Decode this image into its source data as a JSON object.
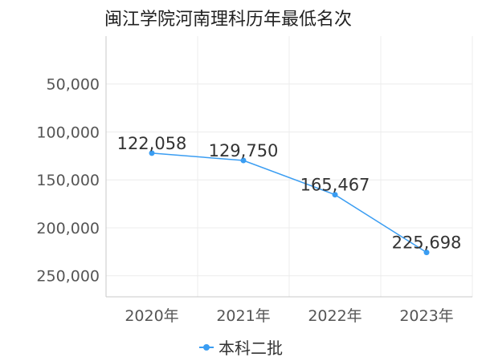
{
  "chart_data": {
    "type": "line",
    "title": "闽江学院河南理科历年最低名次",
    "categories": [
      "2020年",
      "2021年",
      "2022年",
      "2023年"
    ],
    "series": [
      {
        "name": "本科二批",
        "values": [
          122058,
          129750,
          165467,
          225698
        ],
        "color": "#3a9df2"
      }
    ],
    "data_labels": [
      "122,058",
      "129,750",
      "165,467",
      "225,698"
    ],
    "y_ticks": [
      50000,
      100000,
      150000,
      200000,
      250000
    ],
    "y_tick_labels": [
      "50,000",
      "100,000",
      "150,000",
      "200,000",
      "250,000"
    ],
    "ylim": [
      0,
      272000
    ],
    "y_inverted": true,
    "grid": true,
    "legend_position": "bottom-center"
  }
}
